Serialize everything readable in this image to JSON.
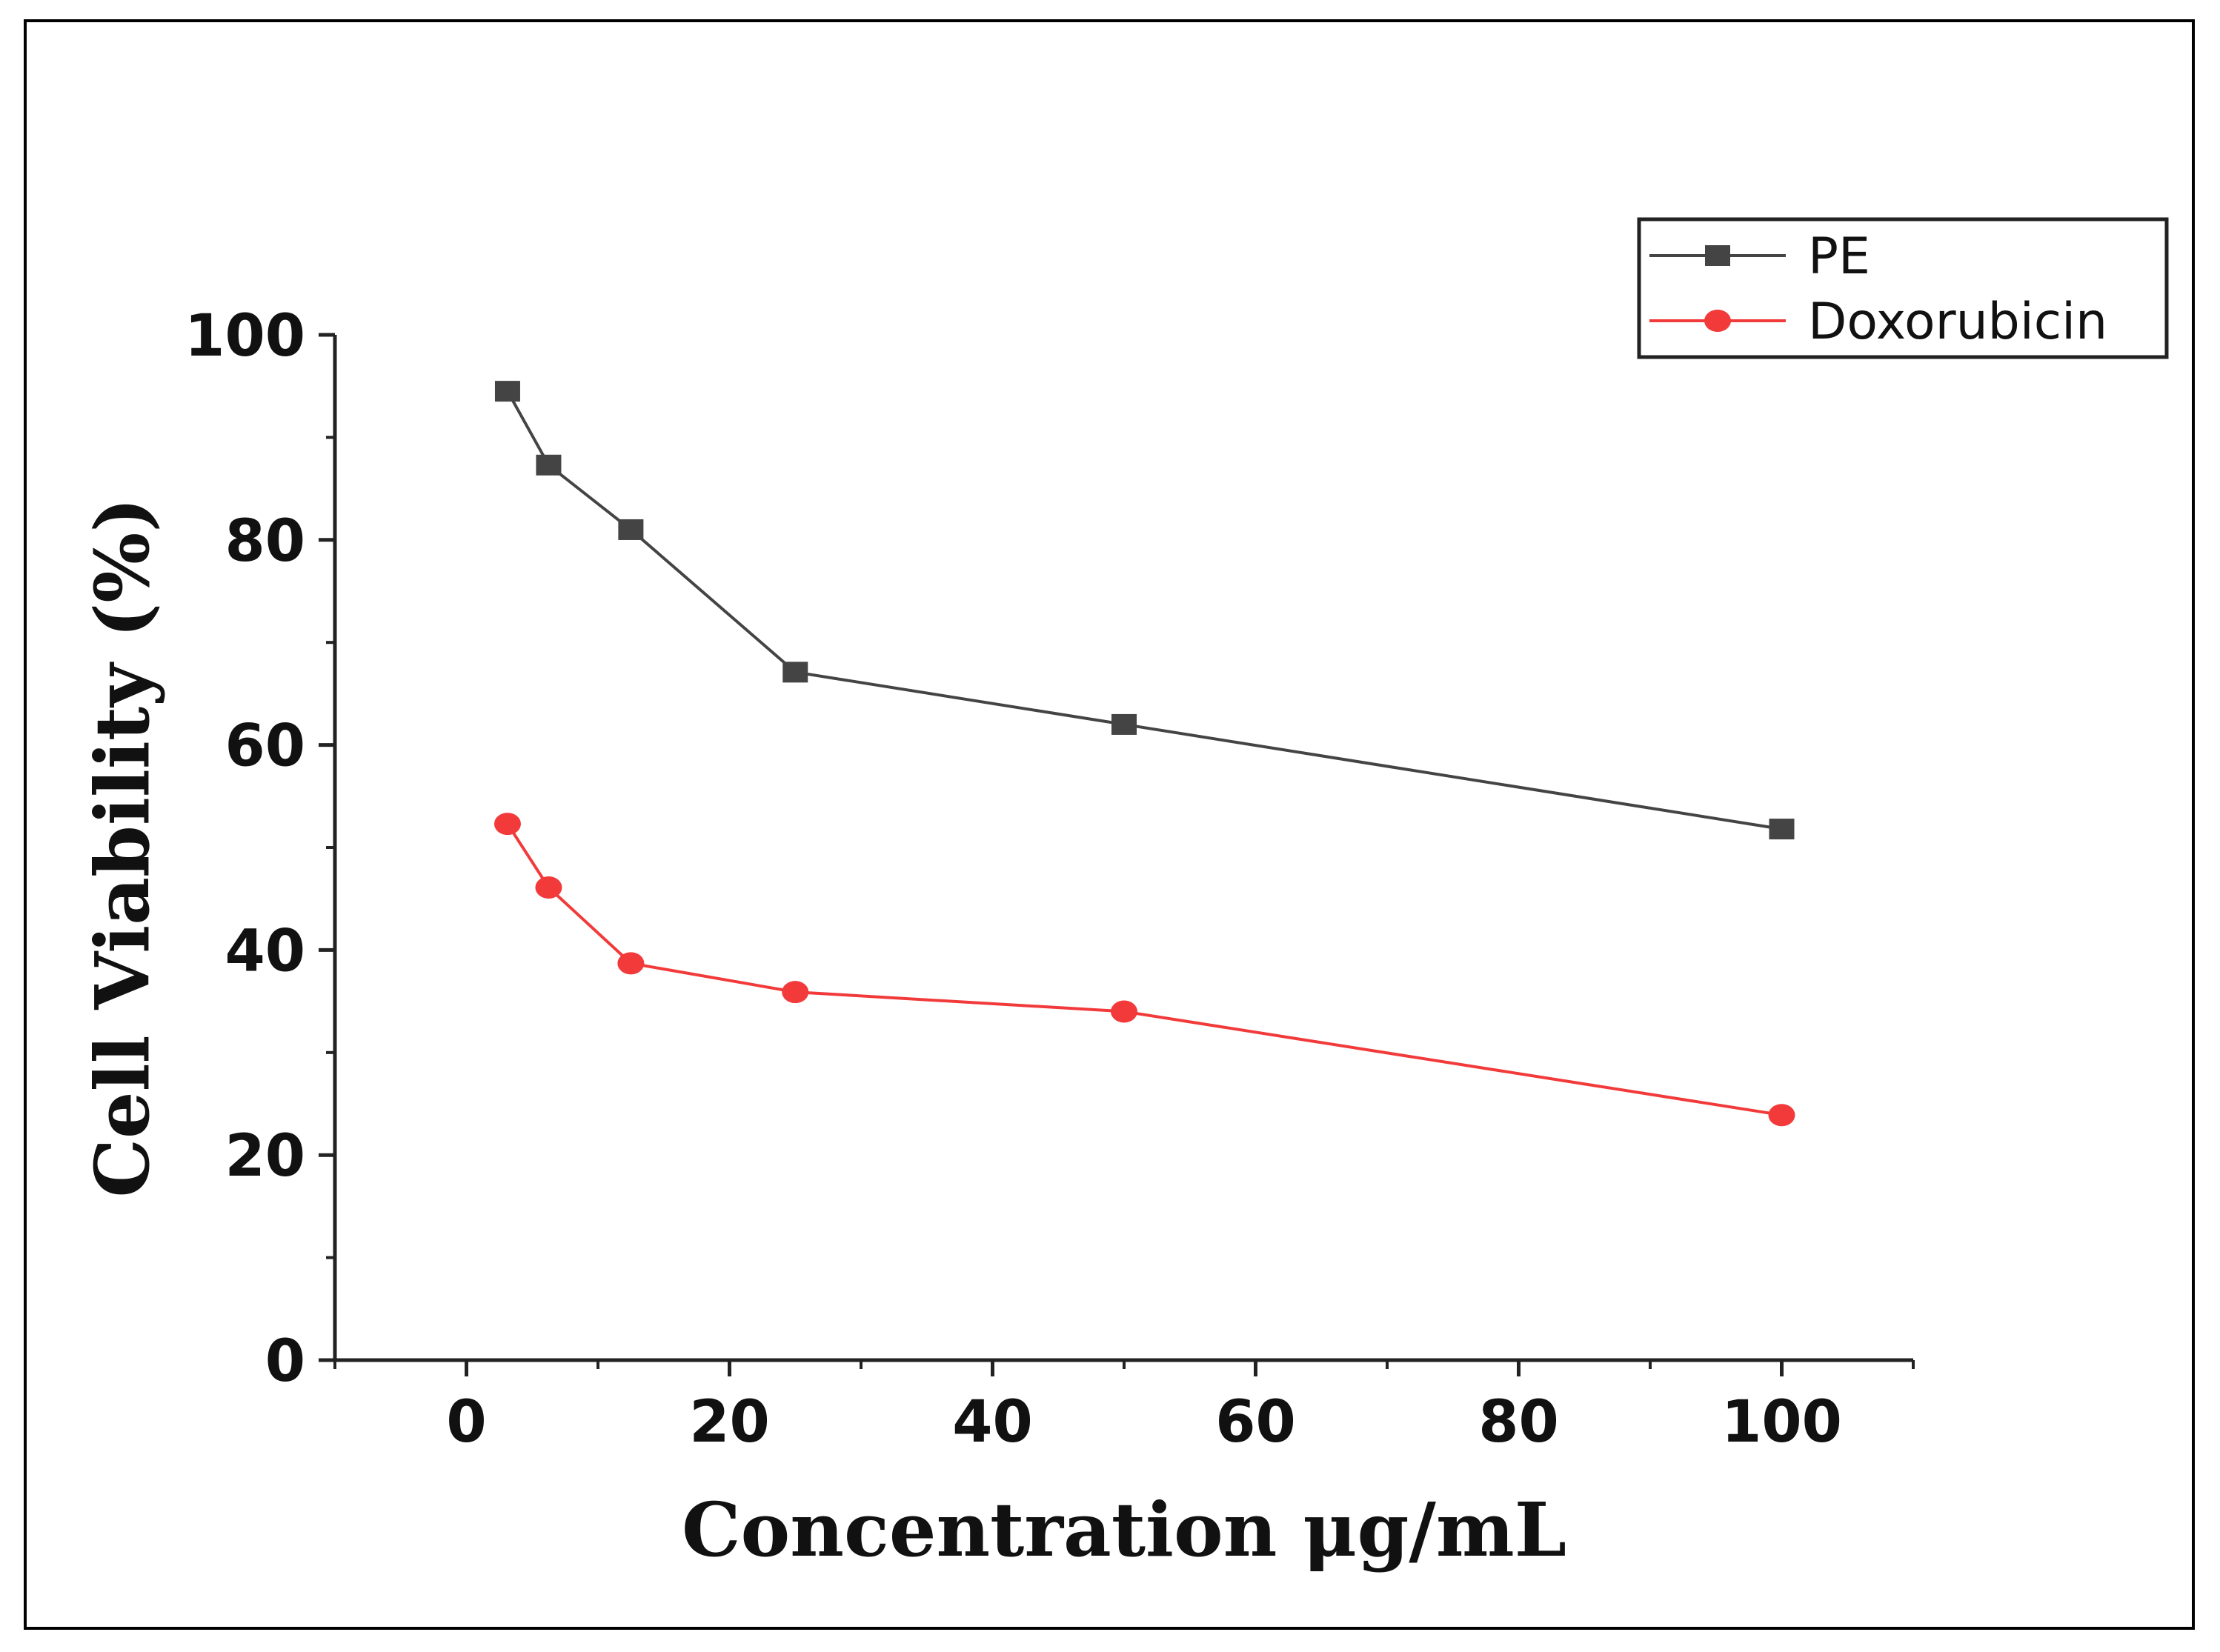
{
  "chart_data": {
    "type": "line",
    "title": "",
    "xlabel": "Concentration μg/mL",
    "ylabel": "Cell Viability (%)",
    "xlim": [
      -10,
      110
    ],
    "ylim": [
      0,
      100
    ],
    "xticks": [
      0,
      20,
      40,
      60,
      80,
      100
    ],
    "yticks": [
      0,
      20,
      40,
      60,
      80,
      100
    ],
    "xtick_labels": [
      "0",
      "20",
      "40",
      "60",
      "80",
      "100"
    ],
    "ytick_labels": [
      "0",
      "20",
      "40",
      "60",
      "80",
      "100"
    ],
    "grid": false,
    "legend_position": "top-right",
    "x": [
      3.125,
      6.25,
      12.5,
      25,
      50,
      100
    ],
    "series": [
      {
        "name": "PE",
        "values": [
          94.5,
          87.3,
          81.0,
          67.1,
          62.0,
          51.8
        ],
        "color": "#444444",
        "marker": "square"
      },
      {
        "name": "Doxorubicin",
        "values": [
          52.3,
          46.1,
          38.7,
          35.9,
          34.0,
          23.9
        ],
        "color": "#f23a3a",
        "marker": "circle"
      }
    ]
  }
}
